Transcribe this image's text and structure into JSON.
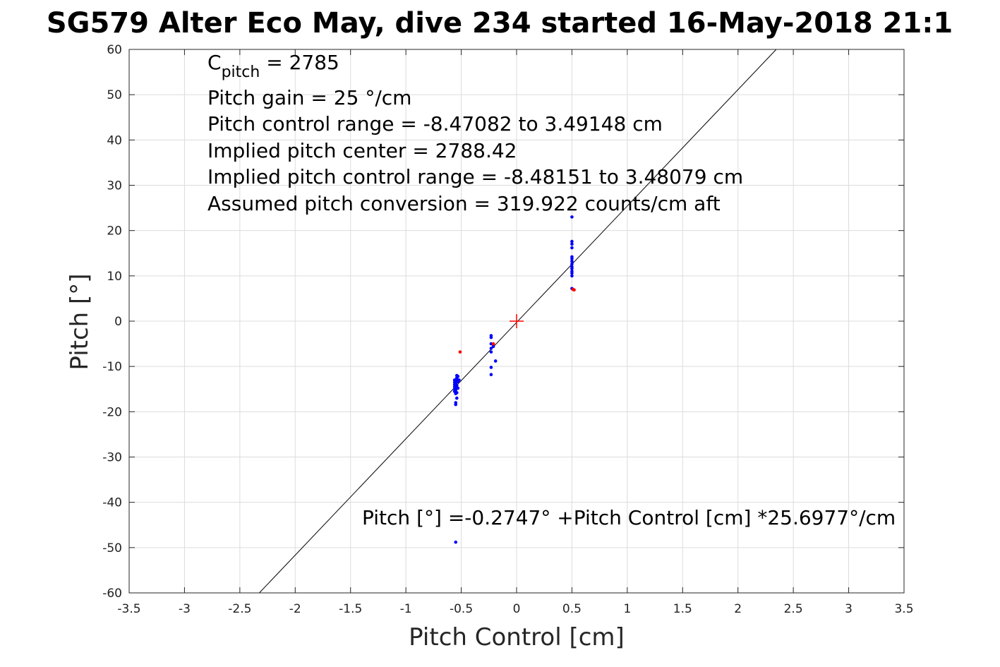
{
  "chart_data": {
    "type": "scatter",
    "title": "SG579 Alter Eco May, dive 234 started 16-May-2018 21:1",
    "xlabel": "Pitch Control [cm]",
    "ylabel": "Pitch [°]",
    "xlim": [
      -3.5,
      3.5
    ],
    "ylim": [
      -60,
      60
    ],
    "xticks": [
      "-3.5",
      "-3",
      "-2.5",
      "-2",
      "-1.5",
      "-1",
      "-0.5",
      "0",
      "0.5",
      "1",
      "1.5",
      "2",
      "2.5",
      "3",
      "3.5"
    ],
    "yticks": [
      "-60",
      "-50",
      "-40",
      "-30",
      "-20",
      "-10",
      "0",
      "10",
      "20",
      "30",
      "40",
      "50",
      "60"
    ],
    "grid": true,
    "annotations": {
      "c_pitch_symbol": "C",
      "c_pitch_subscript": "pitch",
      "c_pitch_value": " = 2785",
      "line2": "Pitch gain = 25 °/cm",
      "line3": "Pitch control range = -8.47082 to 3.49148 cm",
      "line4": "Implied pitch center = 2788.42",
      "line5": "Implied pitch control range = -8.48151 to 3.48079 cm",
      "line6": "Assumed pitch conversion = 319.922 counts/cm aft",
      "fit_equation": "Pitch [°] =-0.2747° +Pitch Control [cm] *25.6977°/cm"
    },
    "fit_line": {
      "intercept": -0.2747,
      "slope": 25.6977,
      "color": "#000000"
    },
    "center_marker": {
      "x": 0,
      "y": 0,
      "color": "#ff0000"
    },
    "series": [
      {
        "color": "#0000ff",
        "points": [
          [
            -0.56,
            -13.0
          ],
          [
            -0.56,
            -13.5
          ],
          [
            -0.56,
            -14.0
          ],
          [
            -0.56,
            -14.5
          ],
          [
            -0.56,
            -15.0
          ],
          [
            -0.56,
            -15.5
          ],
          [
            -0.55,
            -13.2
          ],
          [
            -0.55,
            -13.8
          ],
          [
            -0.55,
            -14.6
          ],
          [
            -0.55,
            -15.2
          ],
          [
            -0.55,
            -16.0
          ],
          [
            -0.55,
            -18.0
          ],
          [
            -0.55,
            -18.4
          ],
          [
            -0.55,
            -48.8
          ],
          [
            -0.54,
            -12.0
          ],
          [
            -0.54,
            -12.5
          ],
          [
            -0.54,
            -13.0
          ],
          [
            -0.54,
            -14.2
          ],
          [
            -0.54,
            -15.8
          ],
          [
            -0.54,
            -17.0
          ],
          [
            -0.53,
            -12.2
          ],
          [
            -0.53,
            -13.4
          ],
          [
            -0.53,
            -14.8
          ],
          [
            -0.52,
            -13.0
          ],
          [
            -0.23,
            -3.2
          ],
          [
            -0.23,
            -3.6
          ],
          [
            -0.23,
            -5.0
          ],
          [
            -0.23,
            -6.0
          ],
          [
            -0.23,
            -6.8
          ],
          [
            -0.23,
            -10.2
          ],
          [
            -0.23,
            -11.8
          ],
          [
            -0.21,
            -5.6
          ],
          [
            -0.19,
            -8.8
          ],
          [
            0.5,
            23.0
          ],
          [
            0.5,
            17.6
          ],
          [
            0.5,
            17.0
          ],
          [
            0.5,
            16.2
          ],
          [
            0.5,
            14.2
          ],
          [
            0.5,
            13.8
          ],
          [
            0.5,
            13.2
          ],
          [
            0.5,
            12.6
          ],
          [
            0.5,
            12.0
          ],
          [
            0.5,
            11.6
          ],
          [
            0.5,
            11.0
          ],
          [
            0.5,
            10.6
          ],
          [
            0.5,
            10.0
          ],
          [
            0.5,
            7.2
          ]
        ]
      },
      {
        "color": "#ff0000",
        "points": [
          [
            -0.51,
            -6.8
          ],
          [
            -0.21,
            -5.0
          ],
          [
            0.51,
            7.0
          ],
          [
            0.52,
            6.9
          ]
        ]
      }
    ]
  }
}
